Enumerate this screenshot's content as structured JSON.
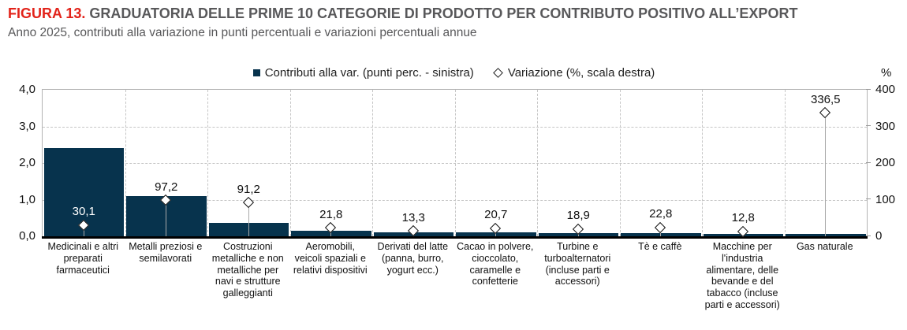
{
  "header": {
    "figure_label": "FIGURA 13.",
    "title": "GRADUATORIA DELLE PRIME 10 CATEGORIE DI PRODOTTO PER CONTRIBUTO POSITIVO ALL’EXPORT",
    "subtitle": "Anno 2025, contributi alla variazione in punti percentuali e variazioni percentuali annue"
  },
  "legend": [
    {
      "marker": "square-icon",
      "label": "Contributi alla var. (punti perc. - sinistra)"
    },
    {
      "marker": "diamond-icon",
      "label": "Variazione (%, scala destra)"
    }
  ],
  "colors": {
    "bar": "#07334D",
    "figure_label_red": "#E2231A",
    "title_gray": "#58585A",
    "axis_text": "#111111",
    "gridline": "#C6C6C6",
    "plot_border": "#B3B3B3",
    "axis_line": "#000000",
    "drop_line": "#A8A8A8",
    "marker_fill": "#FFFFFF",
    "marker_border": "#111111",
    "label_on_bar": "#FFFFFF"
  },
  "chart_data": {
    "type": "bar",
    "title": "GRADUATORIA DELLE PRIME 10 CATEGORIE DI PRODOTTO PER CONTRIBUTO POSITIVO ALL’EXPORT",
    "subtitle": "Anno 2025, contributi alla variazione in punti percentuali e variazioni percentuali annue",
    "legend_position": "top-center",
    "grid": "dashed",
    "categories": [
      "Medicinali e altri preparati farmaceutici",
      "Metalli preziosi e semilavorati",
      "Costruzioni metalliche e non metalliche per navi e strutture galleggianti",
      "Aeromobili, veicoli spaziali e relativi dispositivi",
      "Derivati del latte (panna, burro, yogurt ecc.)",
      "Cacao in polvere, cioccolato, caramelle e confetterie",
      "Turbine e turboalternatori (incluse parti e accessori)",
      "Tè e caffè",
      "Macchine per l'industria alimentare, delle bevande e del tabacco (incluse parti e accessori)",
      "Gas naturale"
    ],
    "series": [
      {
        "name": "Contributi alla var. (punti perc. - sinistra)",
        "type": "bar",
        "axis": "left",
        "values": [
          2.4,
          1.1,
          0.37,
          0.16,
          0.11,
          0.11,
          0.09,
          0.08,
          0.07,
          0.06
        ]
      },
      {
        "name": "Variazione (%, scala destra)",
        "type": "scatter",
        "marker": "diamond",
        "axis": "right",
        "values": [
          30.1,
          97.2,
          91.2,
          21.8,
          13.3,
          20.7,
          18.9,
          22.8,
          12.8,
          336.5
        ],
        "point_labels": [
          "30,1",
          "97,2",
          "91,2",
          "21,8",
          "13,3",
          "20,7",
          "18,9",
          "22,8",
          "12,8",
          "336,5"
        ]
      }
    ],
    "left_axis": {
      "min": 0,
      "max": 4,
      "tick_values": [
        0,
        1,
        2,
        3,
        4
      ],
      "tick_labels": [
        "0,0",
        "1,0",
        "2,0",
        "3,0",
        "4,0"
      ]
    },
    "right_axis": {
      "min": 0,
      "max": 400,
      "tick_values": [
        0,
        100,
        200,
        300,
        400
      ],
      "tick_labels": [
        "0",
        "100",
        "200",
        "300",
        "400"
      ],
      "unit_label": "%"
    }
  }
}
